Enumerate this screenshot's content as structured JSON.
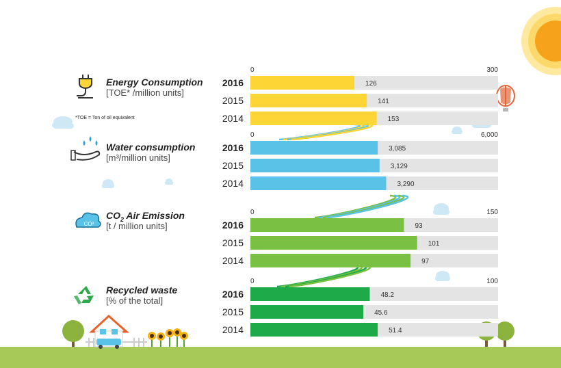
{
  "colors": {
    "energy": "#fdd535",
    "water": "#5bc2e7",
    "co2": "#7ac143",
    "waste": "#1faa4a",
    "track": "#e4e4e4",
    "text": "#333333"
  },
  "panels": [
    {
      "title": "Energy Consumption",
      "unit": "[TOE* /million units]",
      "icon": "plug-icon"
    },
    {
      "title": "Water consumption",
      "unit": "[m³/million units]",
      "icon": "water-hand-icon"
    },
    {
      "title_main": "CO",
      "title_sub": "2",
      "title_rest": " Air Emission",
      "unit": "[t / million units]",
      "icon": "co2-cloud-icon",
      "icon_text": "CO²"
    },
    {
      "title": "Recycled waste",
      "unit": "[% of the total]",
      "icon": "recycle-icon"
    }
  ],
  "footnote": "*TOE = Ton of oil equivalent",
  "chart_data": [
    {
      "type": "bar",
      "orientation": "horizontal",
      "categories": [
        "2016",
        "2015",
        "2014"
      ],
      "values": [
        126,
        141,
        153
      ],
      "xlim": [
        0,
        300
      ],
      "color": "#fdd535"
    },
    {
      "type": "bar",
      "orientation": "horizontal",
      "categories": [
        "2016",
        "2015",
        "2014"
      ],
      "values": [
        3085,
        3129,
        3290
      ],
      "value_labels": [
        "3,085",
        "3,129",
        "3,290"
      ],
      "xlim": [
        0,
        6000
      ],
      "color": "#5bc2e7"
    },
    {
      "type": "bar",
      "orientation": "horizontal",
      "categories": [
        "2016",
        "2015",
        "2014"
      ],
      "values": [
        93,
        101,
        97
      ],
      "xlim": [
        0,
        150
      ],
      "color": "#7ac143"
    },
    {
      "type": "bar",
      "orientation": "horizontal",
      "categories": [
        "2016",
        "2015",
        "2014"
      ],
      "values": [
        48.2,
        45.6,
        51.4
      ],
      "xlim": [
        0,
        100
      ],
      "color": "#1faa4a"
    }
  ]
}
